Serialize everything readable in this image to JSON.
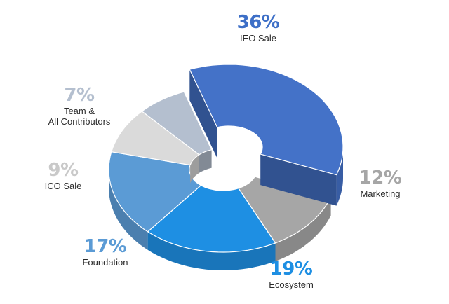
{
  "chart_data": {
    "type": "pie",
    "variant": "3d-donut",
    "categories": [
      "IEO Sale",
      "Marketing",
      "Ecosystem",
      "Foundation",
      "ICO Sale",
      "Team & All Contributors"
    ],
    "values": [
      36,
      12,
      19,
      17,
      9,
      7
    ],
    "value_labels": [
      "36%",
      "12%",
      "19%",
      "17%",
      "9%",
      "7%"
    ],
    "colors": [
      "#4472c8",
      "#a6a6a6",
      "#1e8fe3",
      "#5b9bd5",
      "#dadada",
      "#b4bfcf"
    ],
    "label_colors": [
      "#3d6fc7",
      "#a6a6a6",
      "#1e8fe3",
      "#5b9bd5",
      "#c9c9c9",
      "#b4bfcf"
    ],
    "exploded": "IEO Sale"
  },
  "labels": [
    {
      "pct": "36%",
      "name": "IEO Sale"
    },
    {
      "pct": "12%",
      "name": "Marketing"
    },
    {
      "pct": "19%",
      "name": "Ecosystem"
    },
    {
      "pct": "17%",
      "name": "Foundation"
    },
    {
      "pct": "9%",
      "name": "ICO Sale"
    },
    {
      "pct": "7%",
      "name_line1": "Team &",
      "name_line2": "All Contributors"
    }
  ]
}
